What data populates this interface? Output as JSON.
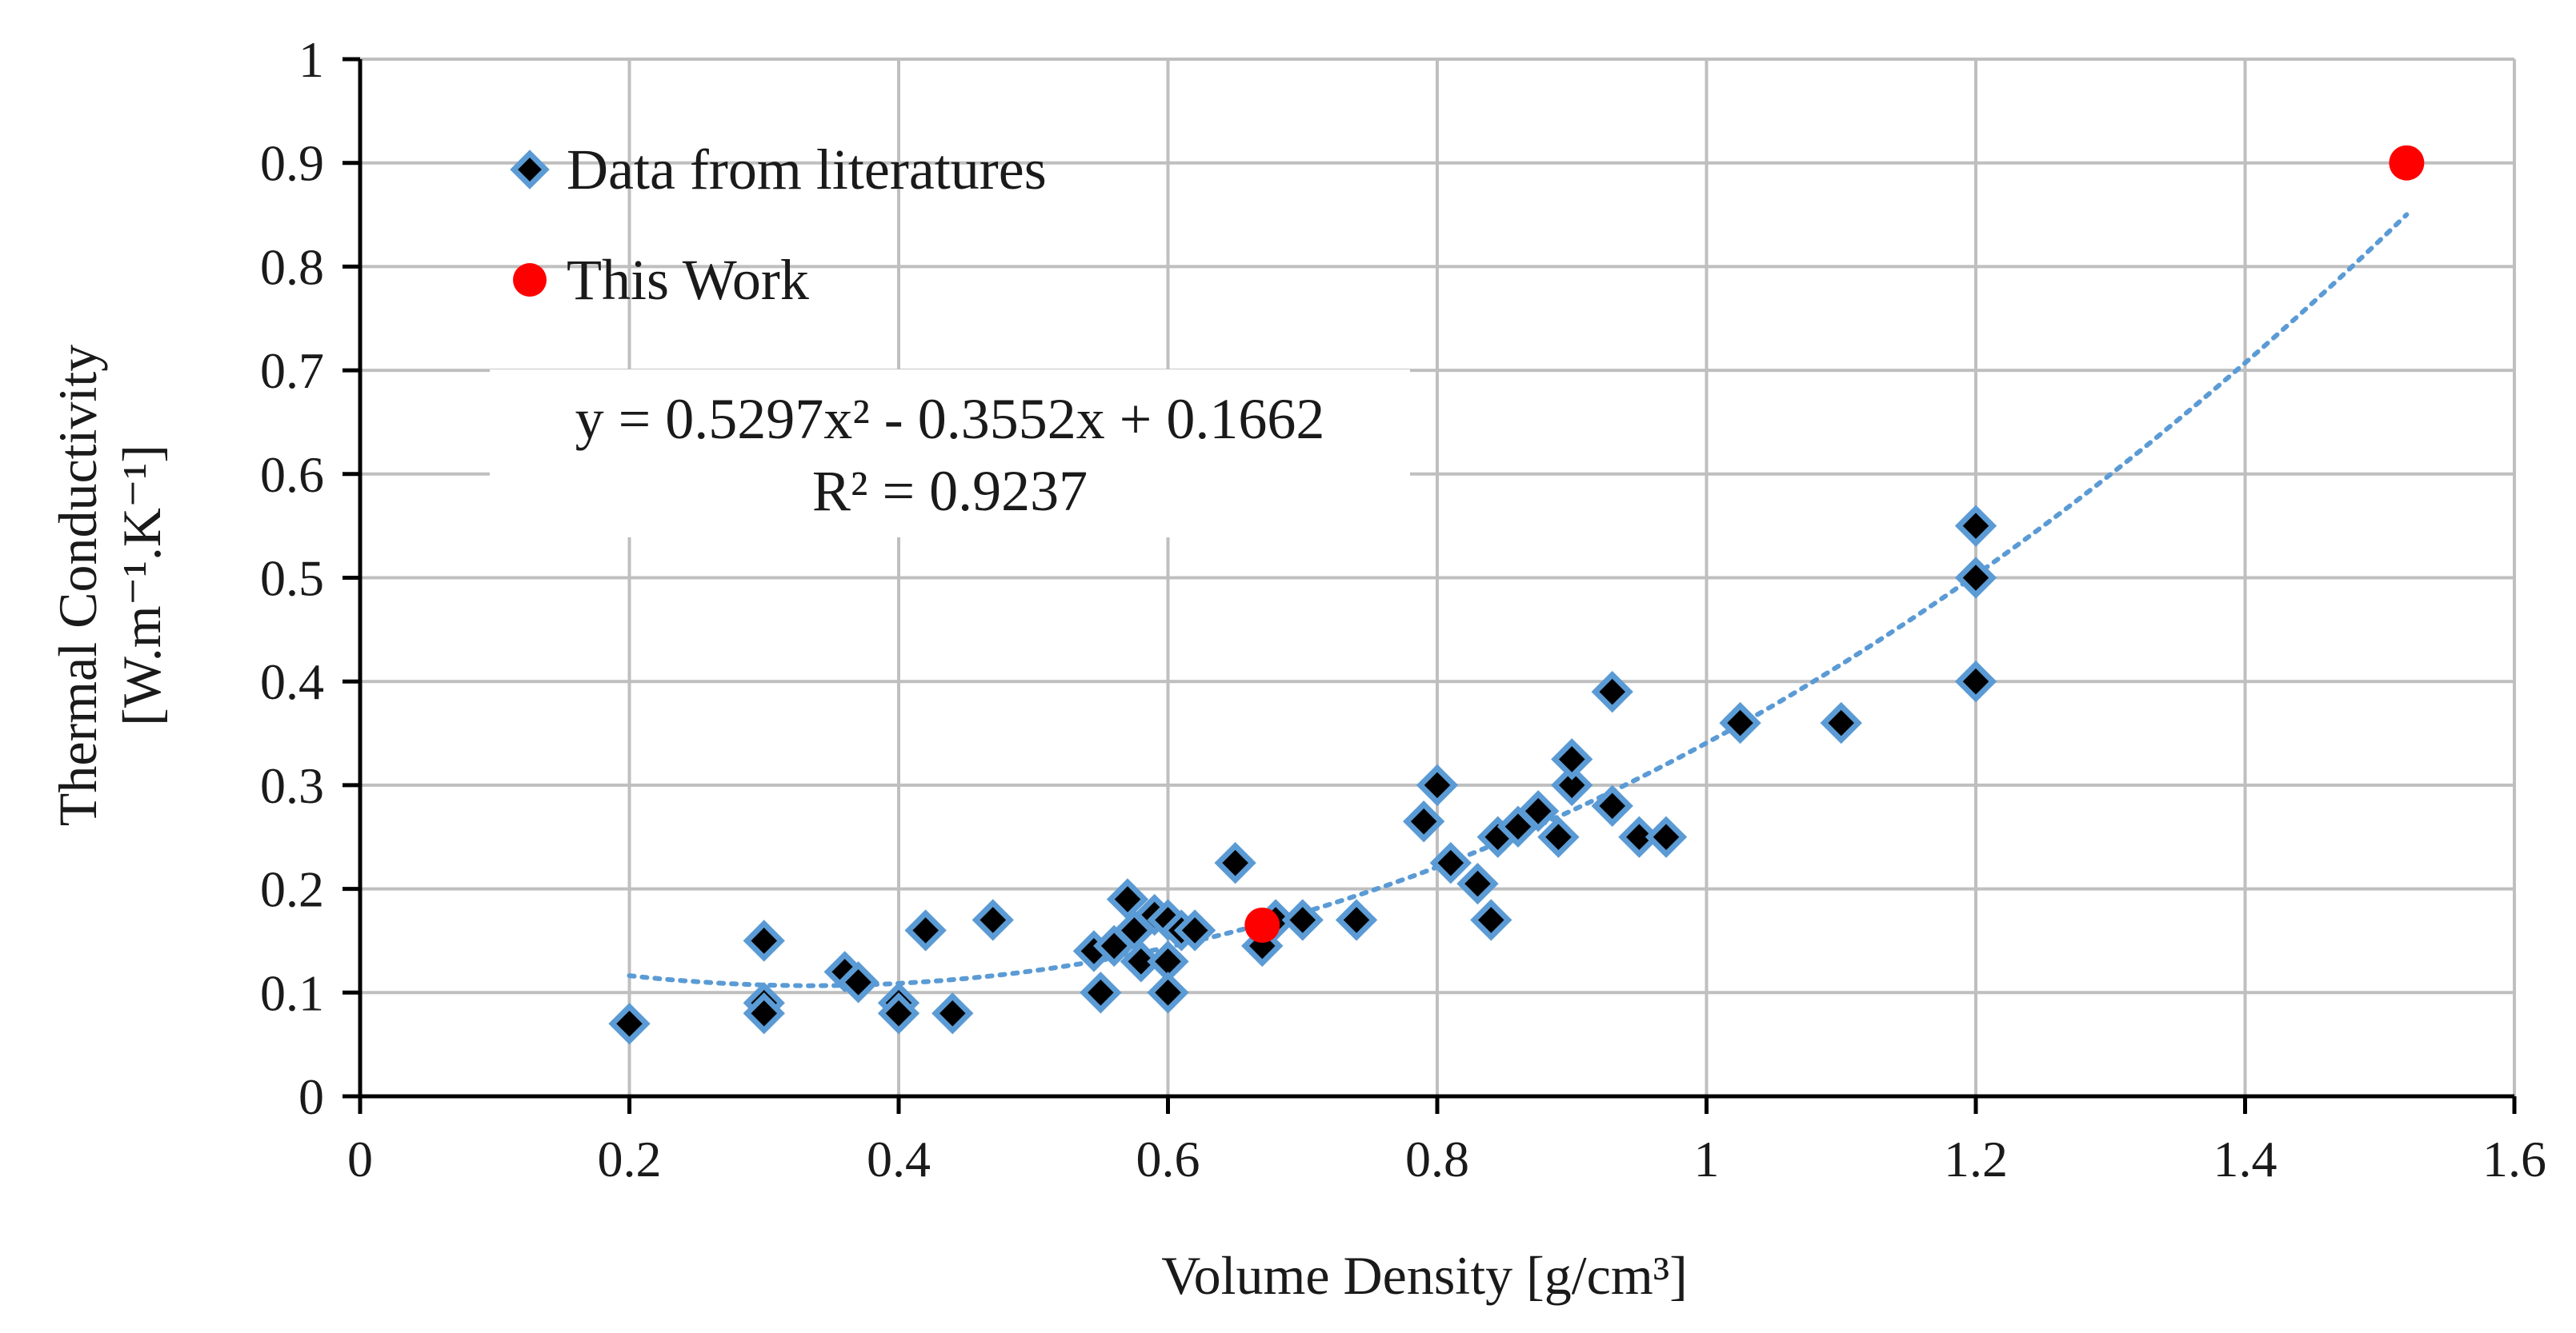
{
  "chart_data": {
    "type": "scatter",
    "xlabel": "Volume Density [g/cm³]",
    "ylabel_line1": "Thermal Conductivity",
    "ylabel_line2": "[W.m⁻¹.K⁻¹]",
    "xlim": [
      0,
      1.6
    ],
    "ylim": [
      0,
      1
    ],
    "x_ticks": [
      "0",
      "0.2",
      "0.4",
      "0.6",
      "0.8",
      "1",
      "1.2",
      "1.4",
      "1.6"
    ],
    "y_ticks": [
      "0",
      "0.1",
      "0.2",
      "0.3",
      "0.4",
      "0.5",
      "0.6",
      "0.7",
      "0.8",
      "0.9",
      "1"
    ],
    "grid": true,
    "legend_position": "top-left",
    "series": [
      {
        "name": "Data from literatures",
        "marker": "diamond",
        "color": "#000000",
        "edge_color": "#5b9bd5",
        "points": [
          [
            0.2,
            0.07
          ],
          [
            0.3,
            0.15
          ],
          [
            0.3,
            0.09
          ],
          [
            0.3,
            0.08
          ],
          [
            0.36,
            0.12
          ],
          [
            0.37,
            0.11
          ],
          [
            0.4,
            0.09
          ],
          [
            0.4,
            0.08
          ],
          [
            0.42,
            0.16
          ],
          [
            0.44,
            0.08
          ],
          [
            0.47,
            0.17
          ],
          [
            0.545,
            0.14
          ],
          [
            0.55,
            0.1
          ],
          [
            0.56,
            0.145
          ],
          [
            0.57,
            0.19
          ],
          [
            0.575,
            0.16
          ],
          [
            0.58,
            0.13
          ],
          [
            0.59,
            0.175
          ],
          [
            0.6,
            0.17
          ],
          [
            0.6,
            0.13
          ],
          [
            0.6,
            0.1
          ],
          [
            0.61,
            0.16
          ],
          [
            0.62,
            0.16
          ],
          [
            0.65,
            0.225
          ],
          [
            0.67,
            0.145
          ],
          [
            0.68,
            0.17
          ],
          [
            0.7,
            0.17
          ],
          [
            0.74,
            0.17
          ],
          [
            0.79,
            0.265
          ],
          [
            0.8,
            0.3
          ],
          [
            0.81,
            0.225
          ],
          [
            0.83,
            0.205
          ],
          [
            0.84,
            0.17
          ],
          [
            0.845,
            0.25
          ],
          [
            0.86,
            0.26
          ],
          [
            0.875,
            0.275
          ],
          [
            0.89,
            0.25
          ],
          [
            0.9,
            0.3
          ],
          [
            0.9,
            0.325
          ],
          [
            0.93,
            0.39
          ],
          [
            0.93,
            0.28
          ],
          [
            0.95,
            0.25
          ],
          [
            0.97,
            0.25
          ],
          [
            1.025,
            0.36
          ],
          [
            1.1,
            0.36
          ],
          [
            1.2,
            0.55
          ],
          [
            1.2,
            0.5
          ],
          [
            1.2,
            0.4
          ]
        ]
      },
      {
        "name": "This Work",
        "marker": "circle",
        "color": "#ff0000",
        "points": [
          [
            0.67,
            0.165
          ],
          [
            1.52,
            0.9
          ]
        ]
      }
    ],
    "trendline": {
      "type": "polynomial",
      "coefficients": {
        "a": 0.5297,
        "b": -0.3552,
        "c": 0.1662
      },
      "x_range": [
        0.2,
        1.52
      ],
      "color": "#5b9bd5",
      "style": "dotted",
      "equation_label": "y = 0.5297x² - 0.3552x + 0.1662",
      "r2_label": "R² = 0.9237"
    }
  }
}
